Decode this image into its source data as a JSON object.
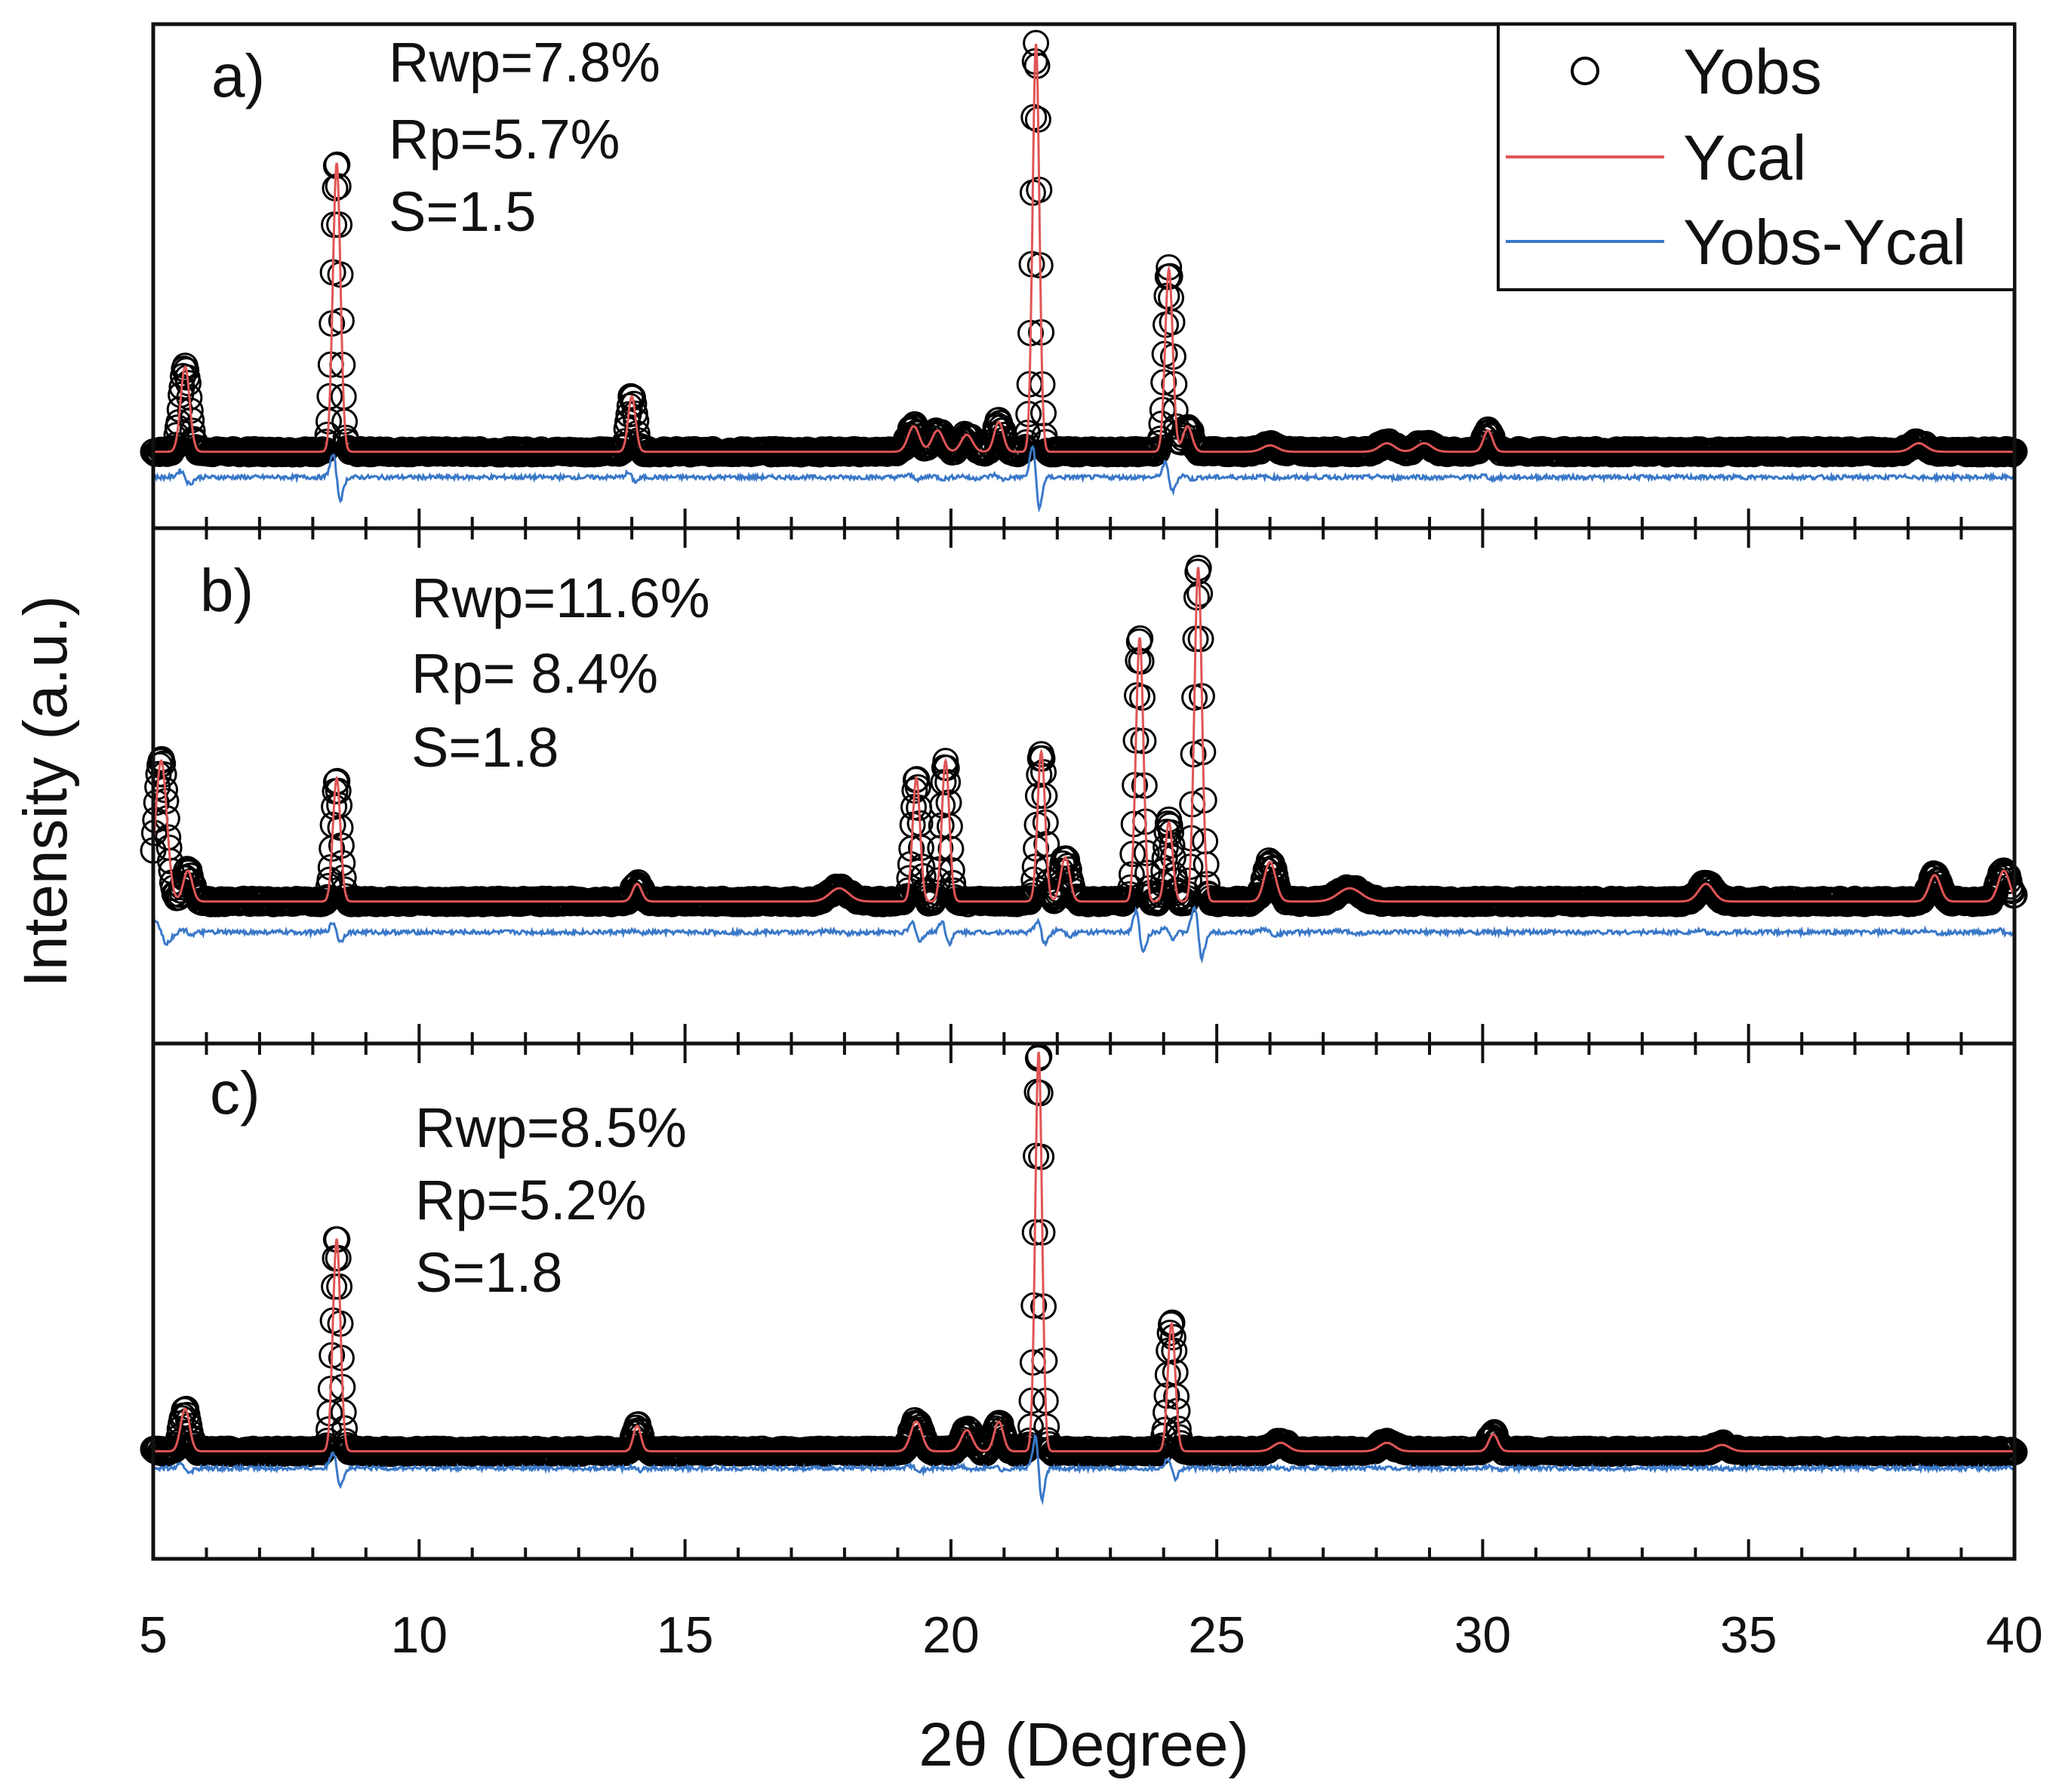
{
  "chart_data": {
    "type": "line",
    "title": "",
    "xlabel": "2θ (Degree)",
    "ylabel": "Intensity (a.u.)",
    "xlim": [
      5,
      40
    ],
    "x_ticks": [
      5,
      10,
      15,
      20,
      25,
      30,
      35,
      40
    ],
    "x_tick_labels": [
      "5",
      "10",
      "15",
      "20",
      "25",
      "30",
      "35",
      "40"
    ],
    "legend": {
      "position": "top-right",
      "entries": [
        {
          "name": "Yobs",
          "marker": "open-circle",
          "color": "#000000"
        },
        {
          "name": "Ycal",
          "marker": "line",
          "color": "#e05555"
        },
        {
          "name": "Yobs-Ycal",
          "marker": "line",
          "color": "#3a78c8"
        }
      ]
    },
    "colors": {
      "obs": "#000000",
      "cal": "#e05555",
      "diff": "#3a78c8",
      "frame": "#111111"
    },
    "panels": [
      {
        "label": "a)",
        "stats": [
          "Rwp=7.8%",
          "Rp=5.7%",
          "S=1.5"
        ],
        "baseline": 0.1,
        "diff_level": 0.04,
        "peaks": [
          {
            "pos": 5.6,
            "height": 0.2,
            "width": 0.12
          },
          {
            "pos": 8.45,
            "height": 0.68,
            "width": 0.1
          },
          {
            "pos": 14.0,
            "height": 0.13,
            "width": 0.1
          },
          {
            "pos": 19.3,
            "height": 0.06,
            "width": 0.15
          },
          {
            "pos": 19.75,
            "height": 0.05,
            "width": 0.15
          },
          {
            "pos": 20.3,
            "height": 0.04,
            "width": 0.15
          },
          {
            "pos": 20.9,
            "height": 0.07,
            "width": 0.12
          },
          {
            "pos": 21.6,
            "height": 0.96,
            "width": 0.09
          },
          {
            "pos": 24.1,
            "height": 0.43,
            "width": 0.1
          },
          {
            "pos": 24.45,
            "height": 0.06,
            "width": 0.12
          },
          {
            "pos": 26.0,
            "height": 0.015,
            "width": 0.2
          },
          {
            "pos": 28.2,
            "height": 0.02,
            "width": 0.2
          },
          {
            "pos": 28.9,
            "height": 0.02,
            "width": 0.2
          },
          {
            "pos": 30.1,
            "height": 0.05,
            "width": 0.12
          },
          {
            "pos": 38.2,
            "height": 0.02,
            "width": 0.2
          }
        ]
      },
      {
        "label": "b)",
        "stats": [
          "Rwp=11.6%",
          "Rp= 8.4%",
          "S=1.8"
        ],
        "baseline": 0.22,
        "diff_level": 0.15,
        "peaks": [
          {
            "pos": 5.15,
            "height": 0.32,
            "width": 0.15
          },
          {
            "pos": 5.65,
            "height": 0.07,
            "width": 0.12
          },
          {
            "pos": 8.45,
            "height": 0.28,
            "width": 0.1
          },
          {
            "pos": 14.1,
            "height": 0.04,
            "width": 0.12
          },
          {
            "pos": 17.9,
            "height": 0.03,
            "width": 0.25
          },
          {
            "pos": 19.35,
            "height": 0.28,
            "width": 0.1
          },
          {
            "pos": 19.9,
            "height": 0.32,
            "width": 0.1
          },
          {
            "pos": 21.7,
            "height": 0.34,
            "width": 0.1
          },
          {
            "pos": 22.15,
            "height": 0.1,
            "width": 0.12
          },
          {
            "pos": 23.55,
            "height": 0.6,
            "width": 0.1
          },
          {
            "pos": 24.1,
            "height": 0.18,
            "width": 0.1
          },
          {
            "pos": 24.65,
            "height": 0.76,
            "width": 0.1
          },
          {
            "pos": 26.0,
            "height": 0.09,
            "width": 0.15
          },
          {
            "pos": 27.5,
            "height": 0.03,
            "width": 0.3
          },
          {
            "pos": 34.2,
            "height": 0.04,
            "width": 0.2
          },
          {
            "pos": 38.5,
            "height": 0.06,
            "width": 0.15
          },
          {
            "pos": 39.8,
            "height": 0.07,
            "width": 0.15
          }
        ]
      },
      {
        "label": "c)",
        "stats": [
          "Rwp=8.5%",
          "Rp=5.2%",
          "S=1.8"
        ],
        "baseline": 0.12,
        "diff_level": 0.08,
        "peaks": [
          {
            "pos": 5.6,
            "height": 0.1,
            "width": 0.12
          },
          {
            "pos": 8.45,
            "height": 0.5,
            "width": 0.1
          },
          {
            "pos": 14.1,
            "height": 0.06,
            "width": 0.1
          },
          {
            "pos": 19.35,
            "height": 0.07,
            "width": 0.15
          },
          {
            "pos": 20.3,
            "height": 0.05,
            "width": 0.15
          },
          {
            "pos": 20.9,
            "height": 0.07,
            "width": 0.12
          },
          {
            "pos": 21.65,
            "height": 0.94,
            "width": 0.09
          },
          {
            "pos": 24.15,
            "height": 0.3,
            "width": 0.1
          },
          {
            "pos": 26.2,
            "height": 0.02,
            "width": 0.2
          },
          {
            "pos": 28.2,
            "height": 0.02,
            "width": 0.2
          },
          {
            "pos": 30.2,
            "height": 0.04,
            "width": 0.12
          },
          {
            "pos": 34.5,
            "height": 0.015,
            "width": 0.2
          }
        ]
      }
    ]
  }
}
